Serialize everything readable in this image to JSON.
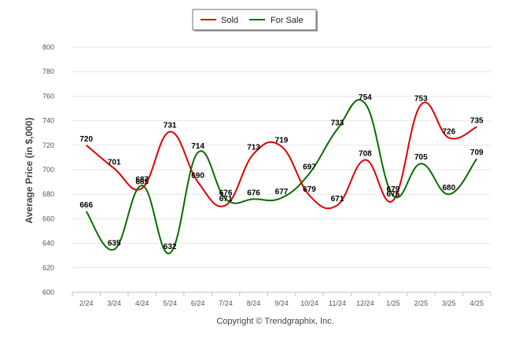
{
  "chart_data": {
    "type": "line",
    "categories": [
      "2/24",
      "3/24",
      "4/24",
      "5/24",
      "6/24",
      "7/24",
      "8/24",
      "9/24",
      "10/24",
      "11/24",
      "12/24",
      "1/25",
      "2/25",
      "3/25",
      "4/25"
    ],
    "series": [
      {
        "name": "Sold",
        "color": "#e00000",
        "values": [
          720,
          701,
          685,
          731,
          690,
          671,
          713,
          719,
          679,
          671,
          708,
          675,
          753,
          726,
          735
        ]
      },
      {
        "name": "For Sale",
        "color": "#0a6b00",
        "values": [
          666,
          635,
          687,
          632,
          714,
          676,
          676,
          677,
          697,
          733,
          754,
          679,
          705,
          680,
          709
        ]
      }
    ],
    "ylabel": "Average Price (in $,000)",
    "xlabel": "",
    "ylim": [
      600,
      800
    ],
    "yticks": [
      600,
      620,
      640,
      660,
      680,
      700,
      720,
      740,
      760,
      780,
      800
    ],
    "grid": true,
    "legend_position": "top-center",
    "credit": "Copyright © Trendgraphix, Inc."
  }
}
